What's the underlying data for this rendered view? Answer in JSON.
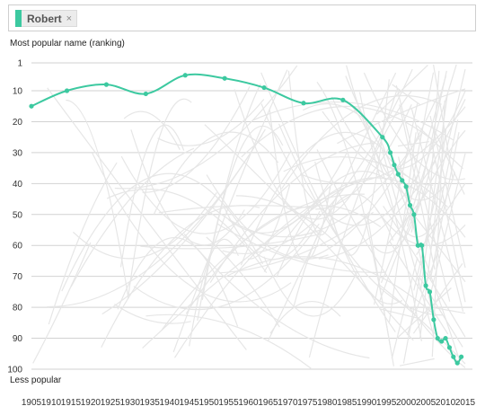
{
  "search": {
    "tag_label": "Robert",
    "tag_color": "#3cc9a0",
    "close_glyph": "×"
  },
  "labels": {
    "top": "Most popular name (ranking)",
    "bottom": "Less popular"
  },
  "chart_data": {
    "type": "line",
    "title": "",
    "xlabel": "",
    "ylabel": "Most popular name (ranking)",
    "y_axis_inverted": true,
    "xlim": [
      1905,
      2015
    ],
    "ylim": [
      1,
      100
    ],
    "x_ticks": [
      1905,
      1910,
      1915,
      1920,
      1925,
      1930,
      1935,
      1940,
      1945,
      1950,
      1955,
      1960,
      1965,
      1970,
      1975,
      1980,
      1985,
      1990,
      1995,
      2000,
      2005,
      2010,
      2015
    ],
    "y_ticks": [
      1,
      10,
      20,
      30,
      40,
      50,
      60,
      70,
      80,
      90,
      100
    ],
    "grid": "horizontal",
    "highlight_color": "#3cc9a0",
    "background_lines_color": "#e6e6e6",
    "series": [
      {
        "name": "Robert",
        "x": [
          1905,
          1914,
          1924,
          1934,
          1944,
          1954,
          1964,
          1974,
          1984,
          1994,
          1996,
          1997,
          1998,
          1999,
          2000,
          2001,
          2002,
          2003,
          2004,
          2005,
          2006,
          2007,
          2008,
          2009,
          2010,
          2011,
          2012,
          2013,
          2014
        ],
        "y": [
          15,
          10,
          8,
          11,
          5,
          6,
          9,
          14,
          13,
          25,
          30,
          34,
          37,
          39,
          41,
          47,
          50,
          60,
          60,
          73,
          75,
          84,
          90,
          91,
          90,
          93,
          96,
          98,
          96
        ]
      }
    ]
  }
}
